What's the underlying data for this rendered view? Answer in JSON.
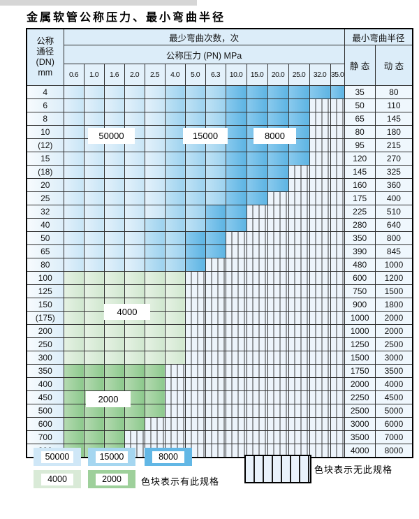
{
  "page": {
    "title": "金属软管公称压力、最小弯曲半径"
  },
  "table": {
    "header": {
      "dn_label_lines": [
        "公称",
        "通径",
        "(DN)",
        "mm"
      ],
      "cycles_label": "最少弯曲次数，次",
      "pressure_label": "公称压力 (PN) MPa",
      "radius_label": "最小弯曲半径",
      "static_label": "静 态",
      "dynamic_label": "动 态",
      "pressures": [
        "0.6",
        "1.0",
        "1.6",
        "2.0",
        "2.5",
        "4.0",
        "5.0",
        "6.3",
        "10.0",
        "15.0",
        "20.0",
        "25.0",
        "32.0",
        "35.0"
      ]
    },
    "bands": {
      "c0": 50000,
      "c1": 15000,
      "c2": 8000,
      "g0": 4000,
      "g1": 2000,
      "h": null
    },
    "rows": [
      {
        "dn": "4",
        "static": "35",
        "dynamic": "80",
        "cells": [
          "c0",
          "c0",
          "c0",
          "c0",
          "c0",
          "c1",
          "c1",
          "c1",
          "c2",
          "c2",
          "c2",
          "c2",
          "c2",
          "c2"
        ]
      },
      {
        "dn": "6",
        "static": "50",
        "dynamic": "110",
        "cells": [
          "c0",
          "c0",
          "c0",
          "c0",
          "c0",
          "c1",
          "c1",
          "c1",
          "c2",
          "c2",
          "c2",
          "c2",
          "h",
          "h"
        ]
      },
      {
        "dn": "8",
        "static": "65",
        "dynamic": "145",
        "cells": [
          "c0",
          "c0",
          "c0",
          "c0",
          "c0",
          "c1",
          "c1",
          "c1",
          "c2",
          "c2",
          "c2",
          "c2",
          "h",
          "h"
        ]
      },
      {
        "dn": "10",
        "static": "80",
        "dynamic": "180",
        "cells": [
          "c0",
          "c0",
          "c0",
          "c0",
          "c0",
          "c1",
          "c1",
          "c1",
          "c2",
          "c2",
          "c2",
          "c2",
          "h",
          "h"
        ]
      },
      {
        "dn": "(12)",
        "static": "95",
        "dynamic": "215",
        "cells": [
          "c0",
          "c0",
          "c0",
          "c0",
          "c0",
          "c1",
          "c1",
          "c1",
          "c2",
          "c2",
          "c2",
          "c2",
          "h",
          "h"
        ]
      },
      {
        "dn": "15",
        "static": "120",
        "dynamic": "270",
        "cells": [
          "c0",
          "c0",
          "c0",
          "c0",
          "c0",
          "c1",
          "c1",
          "c1",
          "c2",
          "c2",
          "c2",
          "c2",
          "h",
          "h"
        ]
      },
      {
        "dn": "(18)",
        "static": "145",
        "dynamic": "325",
        "cells": [
          "c0",
          "c0",
          "c0",
          "c0",
          "c0",
          "c1",
          "c1",
          "c1",
          "c2",
          "c2",
          "c2",
          "h",
          "h",
          "h"
        ]
      },
      {
        "dn": "20",
        "static": "160",
        "dynamic": "360",
        "cells": [
          "c0",
          "c0",
          "c0",
          "c0",
          "c0",
          "c1",
          "c1",
          "c1",
          "c2",
          "c2",
          "c2",
          "h",
          "h",
          "h"
        ]
      },
      {
        "dn": "25",
        "static": "175",
        "dynamic": "400",
        "cells": [
          "c0",
          "c0",
          "c0",
          "c0",
          "c0",
          "c1",
          "c1",
          "c1",
          "c2",
          "c2",
          "h",
          "h",
          "h",
          "h"
        ]
      },
      {
        "dn": "32",
        "static": "225",
        "dynamic": "510",
        "cells": [
          "c0",
          "c0",
          "c0",
          "c0",
          "c0",
          "c1",
          "c1",
          "c2",
          "c2",
          "h",
          "h",
          "h",
          "h",
          "h"
        ]
      },
      {
        "dn": "40",
        "static": "280",
        "dynamic": "640",
        "cells": [
          "c0",
          "c0",
          "c0",
          "c0",
          "c1",
          "c1",
          "c1",
          "c2",
          "c2",
          "h",
          "h",
          "h",
          "h",
          "h"
        ]
      },
      {
        "dn": "50",
        "static": "350",
        "dynamic": "800",
        "cells": [
          "c0",
          "c0",
          "c0",
          "c0",
          "c1",
          "c1",
          "c2",
          "c2",
          "h",
          "h",
          "h",
          "h",
          "h",
          "h"
        ]
      },
      {
        "dn": "65",
        "static": "390",
        "dynamic": "845",
        "cells": [
          "c0",
          "c0",
          "c0",
          "c0",
          "c1",
          "c1",
          "c2",
          "c2",
          "h",
          "h",
          "h",
          "h",
          "h",
          "h"
        ]
      },
      {
        "dn": "80",
        "static": "480",
        "dynamic": "1000",
        "cells": [
          "c0",
          "c0",
          "c0",
          "c0",
          "c1",
          "c1",
          "c2",
          "h",
          "h",
          "h",
          "h",
          "h",
          "h",
          "h"
        ]
      },
      {
        "dn": "100",
        "static": "600",
        "dynamic": "1200",
        "cells": [
          "g0",
          "g0",
          "g0",
          "g0",
          "g0",
          "g0",
          "h",
          "h",
          "h",
          "h",
          "h",
          "h",
          "h",
          "h"
        ]
      },
      {
        "dn": "125",
        "static": "750",
        "dynamic": "1500",
        "cells": [
          "g0",
          "g0",
          "g0",
          "g0",
          "g0",
          "g0",
          "h",
          "h",
          "h",
          "h",
          "h",
          "h",
          "h",
          "h"
        ]
      },
      {
        "dn": "150",
        "static": "900",
        "dynamic": "1800",
        "cells": [
          "g0",
          "g0",
          "g0",
          "g0",
          "g0",
          "g0",
          "h",
          "h",
          "h",
          "h",
          "h",
          "h",
          "h",
          "h"
        ]
      },
      {
        "dn": "(175)",
        "static": "1000",
        "dynamic": "2000",
        "cells": [
          "g0",
          "g0",
          "g0",
          "g0",
          "g0",
          "g0",
          "h",
          "h",
          "h",
          "h",
          "h",
          "h",
          "h",
          "h"
        ]
      },
      {
        "dn": "200",
        "static": "1000",
        "dynamic": "2000",
        "cells": [
          "g0",
          "g0",
          "g0",
          "g0",
          "g0",
          "g0",
          "h",
          "h",
          "h",
          "h",
          "h",
          "h",
          "h",
          "h"
        ]
      },
      {
        "dn": "250",
        "static": "1250",
        "dynamic": "2500",
        "cells": [
          "g0",
          "g0",
          "g0",
          "g0",
          "g0",
          "g0",
          "h",
          "h",
          "h",
          "h",
          "h",
          "h",
          "h",
          "h"
        ]
      },
      {
        "dn": "300",
        "static": "1500",
        "dynamic": "3000",
        "cells": [
          "g0",
          "g0",
          "g0",
          "g0",
          "g0",
          "g0",
          "h",
          "h",
          "h",
          "h",
          "h",
          "h",
          "h",
          "h"
        ]
      },
      {
        "dn": "350",
        "static": "1750",
        "dynamic": "3500",
        "cells": [
          "g1",
          "g1",
          "g1",
          "g1",
          "g1",
          "h",
          "h",
          "h",
          "h",
          "h",
          "h",
          "h",
          "h",
          "h"
        ]
      },
      {
        "dn": "400",
        "static": "2000",
        "dynamic": "4000",
        "cells": [
          "g1",
          "g1",
          "g1",
          "g1",
          "g1",
          "h",
          "h",
          "h",
          "h",
          "h",
          "h",
          "h",
          "h",
          "h"
        ]
      },
      {
        "dn": "450",
        "static": "2250",
        "dynamic": "4500",
        "cells": [
          "g1",
          "g1",
          "g1",
          "g1",
          "g1",
          "h",
          "h",
          "h",
          "h",
          "h",
          "h",
          "h",
          "h",
          "h"
        ]
      },
      {
        "dn": "500",
        "static": "2500",
        "dynamic": "5000",
        "cells": [
          "g1",
          "g1",
          "g1",
          "g1",
          "g1",
          "h",
          "h",
          "h",
          "h",
          "h",
          "h",
          "h",
          "h",
          "h"
        ]
      },
      {
        "dn": "600",
        "static": "3000",
        "dynamic": "6000",
        "cells": [
          "g1",
          "g1",
          "g1",
          "g1",
          "h",
          "h",
          "h",
          "h",
          "h",
          "h",
          "h",
          "h",
          "h",
          "h"
        ]
      },
      {
        "dn": "700",
        "static": "3500",
        "dynamic": "7000",
        "cells": [
          "g1",
          "g1",
          "g1",
          "h",
          "h",
          "h",
          "h",
          "h",
          "h",
          "h",
          "h",
          "h",
          "h",
          "h"
        ]
      },
      {
        "dn": "800",
        "static": "4000",
        "dynamic": "8000",
        "cells": [
          "g1",
          "g1",
          "g1",
          "h",
          "h",
          "h",
          "h",
          "h",
          "h",
          "h",
          "h",
          "h",
          "h",
          "h"
        ]
      }
    ]
  },
  "overlay_labels": [
    {
      "text": "50000"
    },
    {
      "text": "15000"
    },
    {
      "text": "8000"
    },
    {
      "text": "4000"
    },
    {
      "text": "2000"
    }
  ],
  "legend": {
    "items": [
      {
        "value": "50000"
      },
      {
        "value": "15000"
      },
      {
        "value": "8000"
      },
      {
        "value": "4000"
      },
      {
        "value": "2000"
      }
    ],
    "has_spec_text": "色块表示有此规格",
    "no_spec_text": "色块表示无此规格"
  },
  "colors": {
    "cycles_50000": "#cfe7f7",
    "cycles_15000": "#a5d6f0",
    "cycles_8000": "#62b7e5",
    "cycles_4000": "#d9ead7",
    "cycles_2000": "#9ed09b",
    "no_spec_bg": "#e9f2fb"
  }
}
